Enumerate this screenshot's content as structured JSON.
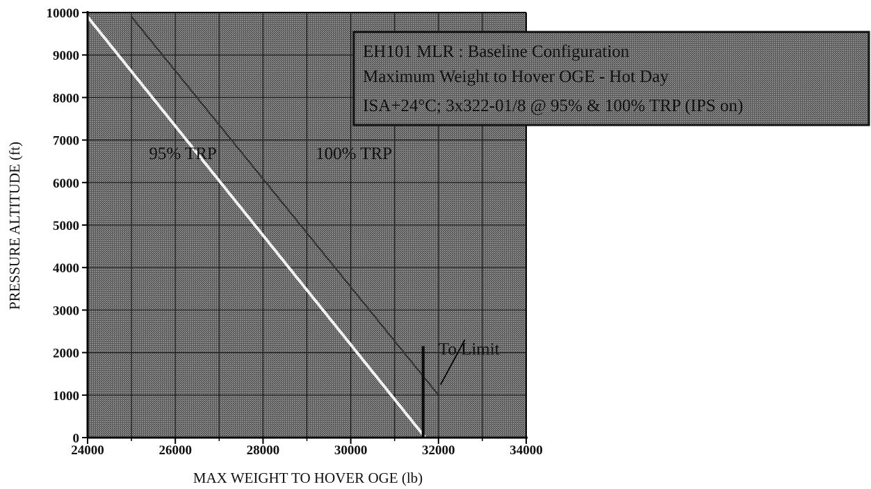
{
  "chart_data": {
    "type": "line",
    "title": "",
    "xlabel": "MAX WEIGHT TO HOVER OGE (lb)",
    "ylabel": "PRESSURE ALTITUDE (ft)",
    "xlim": [
      24000,
      34000
    ],
    "ylim": [
      0,
      10000
    ],
    "x_major_ticks": [
      24000,
      26000,
      28000,
      30000,
      32000,
      34000
    ],
    "x_minor_ticks": [
      25000,
      27000,
      29000,
      31000,
      33000
    ],
    "y_ticks": [
      0,
      1000,
      2000,
      3000,
      4000,
      5000,
      6000,
      7000,
      8000,
      9000,
      10000
    ],
    "grid": true,
    "background": "hatched dark gray",
    "legend_box": {
      "placement": "top-right",
      "lines": [
        "EH101 MLR : Baseline Configuration",
        "Maximum Weight to Hover OGE - Hot Day",
        "ISA+24°C; 3x322-01/8 @ 95% & 100% TRP (IPS on)"
      ]
    },
    "series": [
      {
        "name": "95% TRP",
        "color": "#f2f2f2",
        "x": [
          24000,
          31700
        ],
        "y": [
          9900,
          0
        ]
      },
      {
        "name": "100% TRP",
        "color": "#333333",
        "x": [
          25000,
          32000
        ],
        "y": [
          9900,
          1000
        ]
      }
    ],
    "annotations": [
      {
        "text": "95% TRP",
        "x": 25400,
        "y": 6550
      },
      {
        "text": "100% TRP",
        "x": 29200,
        "y": 6550
      },
      {
        "text": "To Limit",
        "x": 32000,
        "y": 1950
      }
    ],
    "limit_line": {
      "x": 31650,
      "y": [
        0,
        2150
      ]
    },
    "limit_pointer": {
      "from": [
        32050,
        1250
      ],
      "to": [
        32600,
        2300
      ]
    }
  }
}
